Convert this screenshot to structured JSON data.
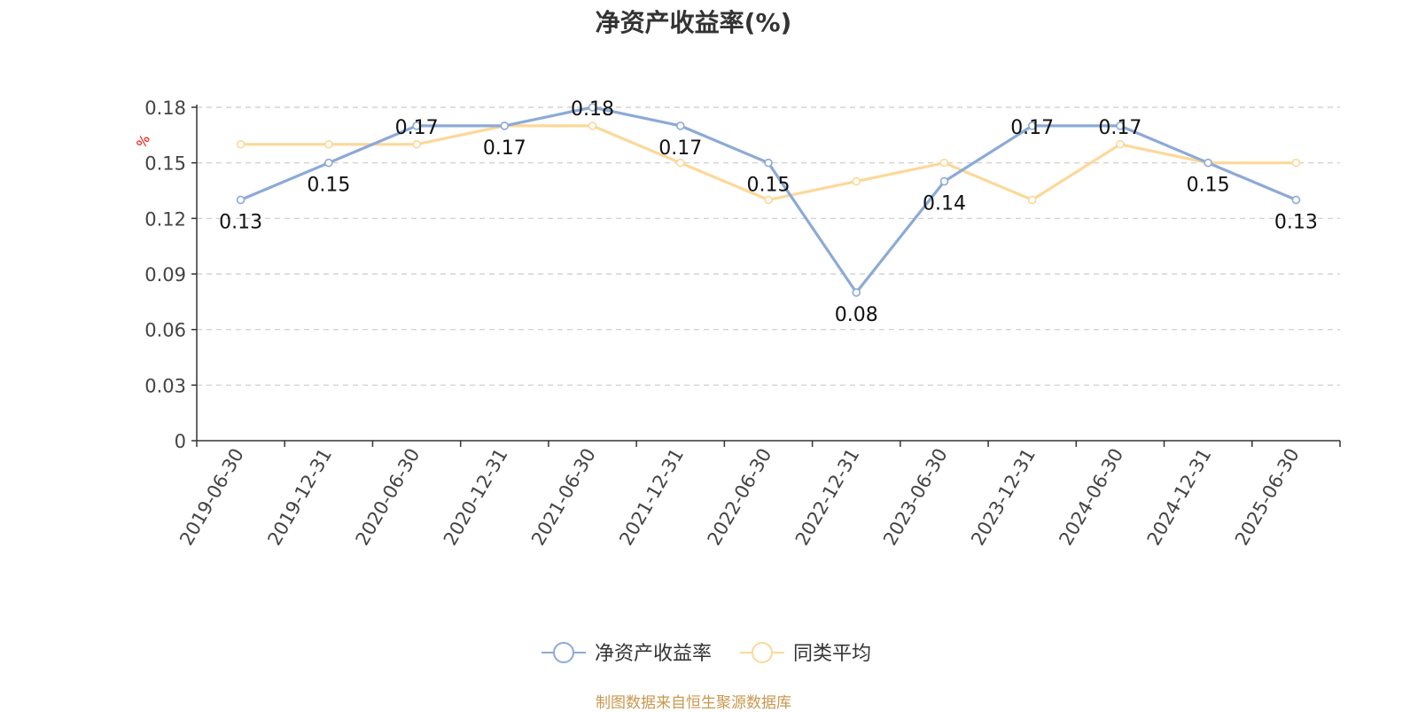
{
  "title": "净资产收益率(%)",
  "source_note": "制图数据来自恒生聚源数据库",
  "colors": {
    "series_1": "#8caad6",
    "series_2": "#fcd899",
    "unit": "#ff0000",
    "footer": "#c9974f"
  },
  "chart_data": {
    "type": "line",
    "title": "净资产收益率(%)",
    "ylabel": "%",
    "xlabel": "",
    "ylim": [
      0,
      0.18
    ],
    "yticks": [
      0,
      0.03,
      0.06,
      0.09,
      0.12,
      0.15,
      0.18
    ],
    "ytick_labels": [
      "0",
      "0.03",
      "0.06",
      "0.09",
      "0.12",
      "0.15",
      "0.18"
    ],
    "grid": "dashed horizontal",
    "legend": "bottom-center",
    "categories": [
      "2019-06-30",
      "2019-12-31",
      "2020-06-30",
      "2020-12-31",
      "2021-06-30",
      "2021-12-31",
      "2022-06-30",
      "2022-12-31",
      "2023-06-30",
      "2023-12-31",
      "2024-06-30",
      "2024-12-31",
      "2025-06-30"
    ],
    "series": [
      {
        "name": "净资产收益率",
        "color": "#8caad6",
        "values": [
          0.13,
          0.15,
          0.17,
          0.17,
          0.18,
          0.17,
          0.15,
          0.08,
          0.14,
          0.17,
          0.17,
          0.15,
          0.13
        ],
        "labels": [
          "0.13",
          "0.15",
          "0.17",
          "0.17",
          "0.18",
          "0.17",
          "0.15",
          "0.08",
          "0.14",
          "0.17",
          "0.17",
          "0.15",
          "0.13"
        ]
      },
      {
        "name": "同类平均",
        "color": "#fcd899",
        "values": [
          0.16,
          0.16,
          0.16,
          0.17,
          0.17,
          0.15,
          0.13,
          0.14,
          0.15,
          0.13,
          0.16,
          0.15,
          0.15
        ]
      }
    ]
  }
}
